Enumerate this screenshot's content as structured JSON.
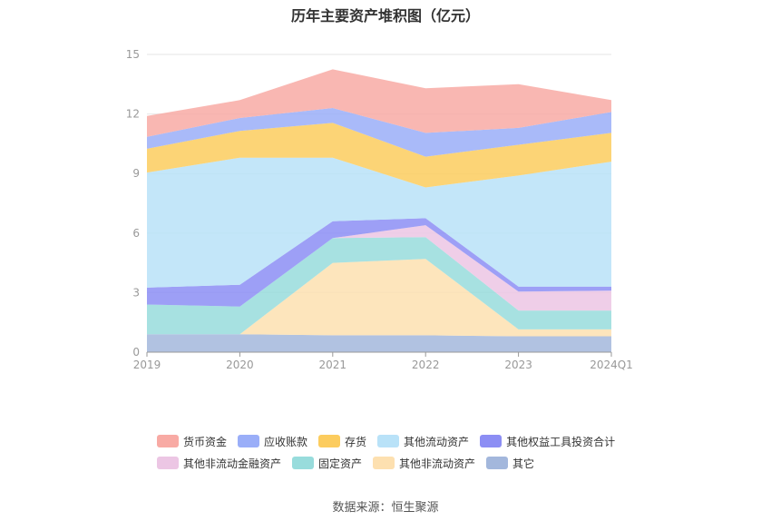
{
  "title": "历年主要资产堆积图（亿元）",
  "source": "数据来源：恒生聚源",
  "colors": {
    "货币资金": "#f8aaa4",
    "应收账款": "#9aaef8",
    "存货": "#fccc5e",
    "其他流动资产": "#b9e2f8",
    "其他权益工具投资合计": "#8c8ef4",
    "其他非流动金融资产": "#ecc6e4",
    "固定资产": "#98dcdc",
    "其他非流动资产": "#fde0b0",
    "其它": "#a3b7dc"
  },
  "legend": [
    [
      "货币资金",
      "应收账款",
      "存货",
      "其他流动资产",
      "其他权益工具投资合计"
    ],
    [
      "其他非流动金融资产",
      "固定资产",
      "其他非流动资产",
      "其它"
    ]
  ],
  "chart_data": {
    "type": "area",
    "stacked": true,
    "categories": [
      "2019",
      "2020",
      "2021",
      "2022",
      "2023",
      "2024Q1"
    ],
    "ylim": [
      0,
      15
    ],
    "yticks": [
      0,
      3,
      6,
      9,
      12,
      15
    ],
    "grid": true,
    "legend_position": "bottom",
    "series": [
      {
        "name": "其它",
        "values": [
          0.9,
          0.9,
          0.85,
          0.85,
          0.8,
          0.8
        ]
      },
      {
        "name": "其他非流动资产",
        "values": [
          0.0,
          0.0,
          3.65,
          3.85,
          0.35,
          0.35
        ]
      },
      {
        "name": "固定资产",
        "values": [
          1.5,
          1.4,
          1.25,
          1.1,
          0.95,
          0.95
        ]
      },
      {
        "name": "其他非流动金融资产",
        "values": [
          0.0,
          0.0,
          0.0,
          0.6,
          0.95,
          1.0
        ]
      },
      {
        "name": "其他权益工具投资合计",
        "values": [
          0.85,
          1.1,
          0.85,
          0.35,
          0.25,
          0.2
        ]
      },
      {
        "name": "其他流动资产",
        "values": [
          5.8,
          6.4,
          3.2,
          1.55,
          5.6,
          6.3
        ]
      },
      {
        "name": "存货",
        "values": [
          1.2,
          1.35,
          1.75,
          1.55,
          1.55,
          1.45
        ]
      },
      {
        "name": "应收账款",
        "values": [
          0.6,
          0.65,
          0.75,
          1.2,
          0.85,
          1.05
        ]
      },
      {
        "name": "货币资金",
        "values": [
          1.05,
          0.9,
          1.95,
          2.25,
          2.2,
          0.6
        ]
      }
    ]
  }
}
